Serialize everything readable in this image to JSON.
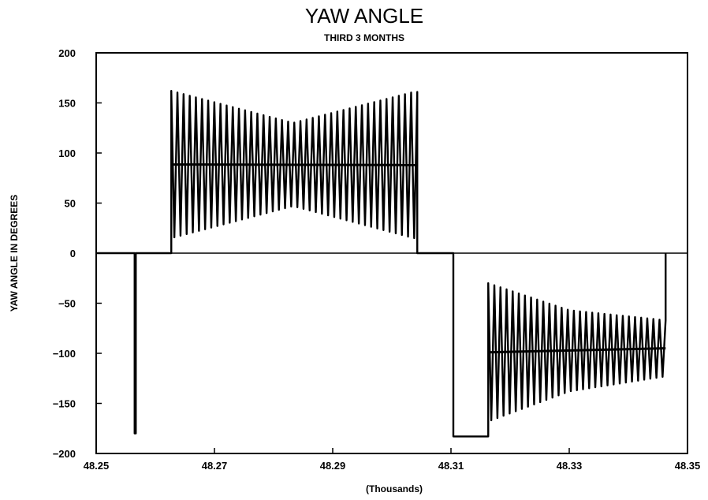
{
  "chart_data": {
    "type": "line",
    "title": "YAW ANGLE",
    "subtitle": "THIRD 3 MONTHS",
    "xlabel": "(Thousands)",
    "ylabel": "YAW ANGLE IN DEGREES",
    "xlim": [
      48.25,
      48.35
    ],
    "ylim": [
      -200,
      200
    ],
    "xticks": [
      48.25,
      48.27,
      48.29,
      48.31,
      48.33,
      48.35
    ],
    "xtick_labels": [
      "48.25",
      "48.27",
      "48.29",
      "48.31",
      "48.33",
      "48.35"
    ],
    "yticks": [
      200,
      150,
      100,
      50,
      0,
      -50,
      -100,
      -150,
      -200
    ],
    "ytick_labels": [
      "200",
      "150",
      "100",
      "50",
      "0",
      "−50",
      "−100",
      "−150",
      "−200"
    ],
    "grid": false,
    "series": [
      {
        "segments": [
          {
            "kind": "line",
            "points": [
              [
                48.25,
                0
              ],
              [
                48.2565,
                0
              ],
              [
                48.2565,
                -180
              ],
              [
                48.2567,
                -180
              ],
              [
                48.2567,
                0
              ],
              [
                48.2627,
                0
              ]
            ]
          },
          {
            "kind": "oscillation",
            "x_start": 48.2627,
            "x_end": 48.3043,
            "cycles": 40,
            "upper": [
              [
                48.2627,
                162
              ],
              [
                48.2833,
                130
              ],
              [
                48.3037,
                161
              ]
            ],
            "lower": [
              [
                48.2627,
                15
              ],
              [
                48.2833,
                47
              ],
              [
                48.3037,
                15
              ]
            ]
          },
          {
            "kind": "line",
            "points": [
              [
                48.3043,
                0
              ],
              [
                48.3104,
                0
              ],
              [
                48.3104,
                -183
              ],
              [
                48.3163,
                -183
              ]
            ]
          },
          {
            "kind": "oscillation",
            "x_start": 48.3163,
            "x_end": 48.3463,
            "cycles": 29,
            "upper": [
              [
                48.3163,
                -30
              ],
              [
                48.33,
                -57
              ],
              [
                48.3463,
                -67
              ]
            ],
            "lower": [
              [
                48.3163,
                -168
              ],
              [
                48.33,
                -138
              ],
              [
                48.3463,
                -123
              ]
            ]
          }
        ]
      }
    ]
  }
}
